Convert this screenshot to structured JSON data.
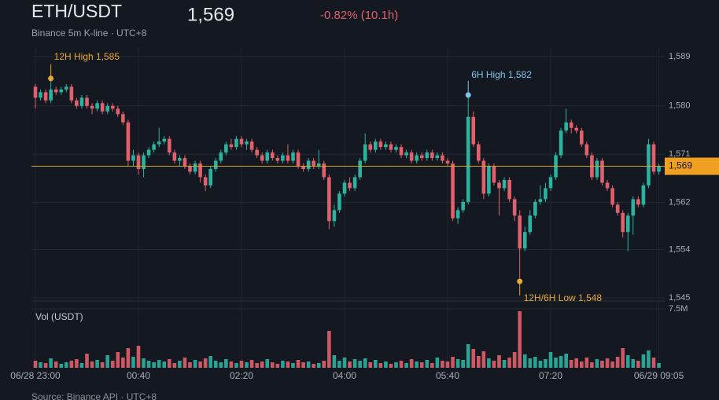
{
  "chart_data": {
    "type": "candlestick",
    "title": "ETH/USDT",
    "subtitle": "Binance 5m K-line · UTC+8",
    "last_price": {
      "value": 1569,
      "label": "1,569"
    },
    "change": "-0.82% (10.1h)",
    "volume_label": "Vol (USDT)",
    "source": "Source: Binance API · UTC+8",
    "up_color": "#2bb3a0",
    "down_color": "#e35f6b",
    "price_line_color": "#d4a72c",
    "grid": true,
    "categories": [
      "06/28 23:00",
      null,
      null,
      null,
      null,
      null,
      null,
      null,
      null,
      null,
      null,
      null,
      null,
      null,
      null,
      null,
      null,
      null,
      null,
      null,
      "00:40",
      null,
      null,
      null,
      null,
      null,
      null,
      null,
      null,
      null,
      null,
      null,
      null,
      null,
      null,
      null,
      null,
      null,
      null,
      null,
      "02:20",
      null,
      null,
      null,
      null,
      null,
      null,
      null,
      null,
      null,
      null,
      null,
      null,
      null,
      null,
      null,
      null,
      null,
      null,
      null,
      "04:00",
      null,
      null,
      null,
      null,
      null,
      null,
      null,
      null,
      null,
      null,
      null,
      null,
      null,
      null,
      null,
      null,
      null,
      null,
      null,
      "05:40",
      null,
      null,
      null,
      null,
      null,
      null,
      null,
      null,
      null,
      null,
      null,
      null,
      null,
      null,
      null,
      null,
      null,
      null,
      null,
      "07:20",
      null,
      null,
      null,
      null,
      null,
      null,
      null,
      null,
      null,
      null,
      null,
      null,
      null,
      null,
      null,
      null,
      null,
      null,
      null,
      null,
      "06/29 09:05"
    ],
    "open": [
      1583.5,
      1581.5,
      1582.5,
      1581,
      1583,
      1582.5,
      1583,
      1583.5,
      1581,
      1580,
      1581.5,
      1580,
      1579.5,
      1580.5,
      1579,
      1580,
      1579.5,
      1578.5,
      1577,
      1570,
      1571,
      1568.5,
      1571,
      1572,
      1573,
      1573.5,
      1574,
      1571.5,
      1570,
      1570.5,
      1569,
      1568,
      1569.5,
      1567,
      1565.5,
      1568.5,
      1570,
      1571.5,
      1573,
      1572.5,
      1574,
      1573,
      1573.5,
      1572,
      1571,
      1570,
      1571.5,
      1570.5,
      1570,
      1571,
      1570,
      1571.5,
      1569,
      1568.5,
      1570,
      1569,
      1569.5,
      1567,
      1559,
      1561,
      1564,
      1566,
      1565,
      1567,
      1570,
      1573,
      1572,
      1573.5,
      1572.5,
      1573,
      1572,
      1572.5,
      1571,
      1571.5,
      1570,
      1571,
      1570.5,
      1571.5,
      1570.5,
      1571,
      1570,
      1569.5,
      1559.5,
      1561,
      1562.5,
      1578,
      1573,
      1570,
      1564,
      1569,
      1566,
      1565,
      1566.5,
      1563,
      1560,
      1554,
      1557,
      1560,
      1562.5,
      1563,
      1565,
      1567,
      1571,
      1575.5,
      1577,
      1576,
      1575.5,
      1573,
      1571,
      1567,
      1570,
      1566,
      1565,
      1562,
      1560.5,
      1557,
      1560,
      1563,
      1562,
      1565.5,
      1573,
      1568
    ],
    "high": [
      1584,
      1583,
      1583,
      1585,
      1583.5,
      1583.5,
      1584,
      1584,
      1581.5,
      1582,
      1582,
      1580.5,
      1581,
      1581,
      1580.5,
      1580.5,
      1580,
      1579,
      1577.5,
      1572,
      1571.5,
      1571.5,
      1572.5,
      1573.5,
      1576,
      1574.5,
      1574.5,
      1572,
      1571,
      1571,
      1569.5,
      1570,
      1570,
      1567.5,
      1569,
      1570.5,
      1572,
      1573.5,
      1574,
      1574.5,
      1574.5,
      1574,
      1574,
      1572.5,
      1571.5,
      1572,
      1572,
      1571,
      1571.5,
      1573,
      1572,
      1572,
      1569.5,
      1570.5,
      1570.5,
      1572,
      1570,
      1567.5,
      1562,
      1564.5,
      1566.5,
      1567,
      1567.5,
      1570.5,
      1575,
      1573.5,
      1574,
      1574,
      1573.5,
      1573.5,
      1573,
      1573,
      1572,
      1572,
      1571.5,
      1571.5,
      1572,
      1572,
      1571.5,
      1571.5,
      1570.5,
      1570,
      1561.5,
      1563,
      1582,
      1579,
      1573.5,
      1570.5,
      1569.5,
      1569.5,
      1566.5,
      1567,
      1567,
      1563.5,
      1561,
      1558,
      1561,
      1563,
      1565.5,
      1566,
      1567.5,
      1571.5,
      1576,
      1579.5,
      1577.5,
      1576.5,
      1576,
      1573.5,
      1571.5,
      1570.5,
      1570.5,
      1566.5,
      1565.5,
      1562.5,
      1561,
      1560.5,
      1563.5,
      1563.5,
      1566,
      1574,
      1573.5,
      1569.5
    ],
    "low": [
      1579.5,
      1581,
      1580.5,
      1580.5,
      1582,
      1582,
      1582.5,
      1580.5,
      1579.5,
      1579.5,
      1579.5,
      1578.5,
      1579,
      1578.5,
      1578.5,
      1579,
      1578,
      1576.5,
      1569,
      1569,
      1567.5,
      1567,
      1570.5,
      1571.5,
      1572.5,
      1573,
      1571,
      1569.5,
      1569,
      1568.5,
      1567.5,
      1567.5,
      1566,
      1564.5,
      1565,
      1568,
      1569.5,
      1571,
      1572,
      1572,
      1572.5,
      1572,
      1571.5,
      1570.5,
      1569.5,
      1569.5,
      1570,
      1569.5,
      1569.5,
      1569.5,
      1569.5,
      1568.5,
      1568,
      1568,
      1568.5,
      1568.5,
      1566.5,
      1557.5,
      1558,
      1560.5,
      1563.5,
      1564.5,
      1564.5,
      1566.5,
      1569.5,
      1571.5,
      1571.5,
      1572,
      1572,
      1571.5,
      1571.5,
      1570.5,
      1570.5,
      1569.5,
      1569.5,
      1570,
      1570,
      1570,
      1570,
      1569.5,
      1569,
      1559,
      1558.5,
      1560.5,
      1562,
      1572.5,
      1569.5,
      1563,
      1563.5,
      1565.5,
      1560,
      1564.5,
      1562.5,
      1559,
      1548,
      1553.5,
      1556.5,
      1559.5,
      1562,
      1562.5,
      1564.5,
      1566.5,
      1570.5,
      1575,
      1575,
      1575,
      1572.5,
      1570.5,
      1566.5,
      1566.5,
      1565.5,
      1564.5,
      1561.5,
      1560,
      1556,
      1553.5,
      1556.5,
      1561.5,
      1561.5,
      1565,
      1567.5,
      1567.5
    ],
    "close": [
      1581.5,
      1582.5,
      1581,
      1583,
      1582.5,
      1583,
      1583.5,
      1581,
      1580,
      1581.5,
      1580,
      1579.5,
      1580.5,
      1579,
      1580,
      1579.5,
      1578.5,
      1577,
      1570,
      1571,
      1568.5,
      1571,
      1572,
      1573,
      1573.5,
      1574,
      1571.5,
      1570,
      1570.5,
      1569,
      1568,
      1569.5,
      1567,
      1565.5,
      1568.5,
      1570,
      1571.5,
      1573,
      1572.5,
      1574,
      1573,
      1573.5,
      1572,
      1571,
      1570,
      1571.5,
      1570.5,
      1570,
      1571,
      1570,
      1571.5,
      1569,
      1568.5,
      1570,
      1569,
      1569.5,
      1567,
      1559,
      1561,
      1564,
      1566,
      1565,
      1567,
      1570,
      1573,
      1572,
      1573.5,
      1572.5,
      1573,
      1572,
      1572.5,
      1571,
      1571.5,
      1570,
      1571,
      1570.5,
      1571.5,
      1570.5,
      1571,
      1570,
      1569.5,
      1559.5,
      1561,
      1562.5,
      1578,
      1573,
      1570,
      1564,
      1569,
      1566,
      1565,
      1566.5,
      1563,
      1560,
      1554,
      1557,
      1560,
      1562.5,
      1563,
      1565,
      1567,
      1571,
      1575.5,
      1577,
      1576,
      1575.5,
      1573,
      1571,
      1567,
      1570,
      1566,
      1565,
      1562,
      1560.5,
      1557,
      1560,
      1563,
      1562,
      1565.5,
      1573,
      1568,
      1569
    ],
    "volume": [
      900000,
      700000,
      600000,
      1200000,
      800000,
      500000,
      700000,
      900000,
      1100000,
      600000,
      1800000,
      800000,
      1000000,
      700000,
      1600000,
      900000,
      2000000,
      1300000,
      2500000,
      1400000,
      2800000,
      1200000,
      900000,
      700000,
      1000000,
      800000,
      1100000,
      600000,
      900000,
      1300000,
      700000,
      1000000,
      800000,
      1200000,
      1500000,
      900000,
      700000,
      1100000,
      800000,
      600000,
      900000,
      700000,
      1000000,
      600000,
      800000,
      1100000,
      700000,
      500000,
      900000,
      800000,
      600000,
      1000000,
      700000,
      800000,
      500000,
      600000,
      900000,
      4700000,
      1600000,
      900000,
      1300000,
      800000,
      1100000,
      900000,
      1200000,
      700000,
      1000000,
      600000,
      800000,
      500000,
      700000,
      900000,
      600000,
      1100000,
      800000,
      700000,
      1000000,
      600000,
      1300000,
      900000,
      800000,
      1400000,
      1100000,
      1000000,
      3000000,
      2400000,
      1500000,
      2100000,
      1200000,
      900000,
      1600000,
      1000000,
      1300000,
      2000000,
      7200000,
      1700000,
      1200000,
      1400000,
      900000,
      1100000,
      2000000,
      1300000,
      1500000,
      1800000,
      1000000,
      1200000,
      800000,
      1300000,
      700000,
      1100000,
      900000,
      1200000,
      800000,
      1400000,
      2500000,
      1600000,
      1100000,
      900000,
      1700000,
      2200000,
      1300000,
      600000
    ],
    "ylim": [
      1545,
      1589
    ],
    "yticks": [
      {
        "value": 1545,
        "label": "1,545"
      },
      {
        "value": 1553.8,
        "label": "1,554"
      },
      {
        "value": 1562.4,
        "label": "1,562"
      },
      {
        "value": 1571.2,
        "label": "1,571"
      },
      {
        "value": 1580,
        "label": "1,580"
      },
      {
        "value": 1589,
        "label": "1,589"
      }
    ],
    "vlim": [
      0,
      7500000
    ],
    "vticks": [
      {
        "value": 7500000,
        "label": "7.5M"
      }
    ],
    "annotations": [
      "12H High 1,585",
      "6H High 1,582",
      "12H/6H Low 1,548"
    ]
  }
}
